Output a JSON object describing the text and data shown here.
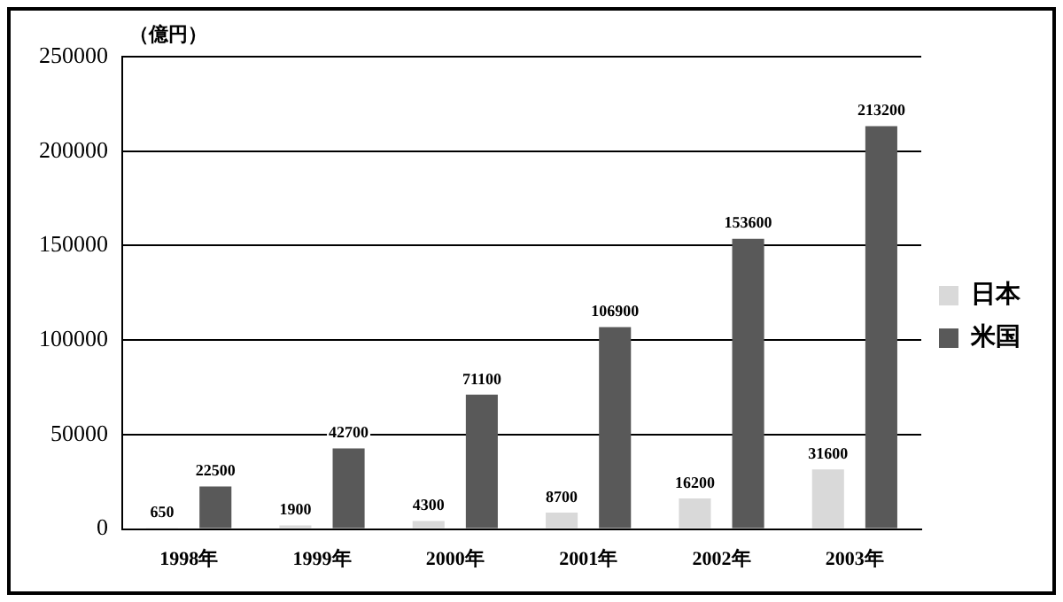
{
  "chart_data": {
    "type": "bar",
    "ylabel": "（億円）",
    "categories": [
      "1998年",
      "1999年",
      "2000年",
      "2001年",
      "2002年",
      "2003年"
    ],
    "series": [
      {
        "name": "日本",
        "color": "#d9d9d9",
        "values": [
          650,
          1900,
          4300,
          8700,
          16200,
          31600
        ]
      },
      {
        "name": "米国",
        "color": "#595959",
        "values": [
          22500,
          42700,
          71100,
          106900,
          153600,
          213200
        ]
      }
    ],
    "ylim": [
      0,
      250000
    ],
    "yticks": [
      0,
      50000,
      100000,
      150000,
      200000,
      250000
    ],
    "grid": "y",
    "legend": "right",
    "data_labels": true
  }
}
